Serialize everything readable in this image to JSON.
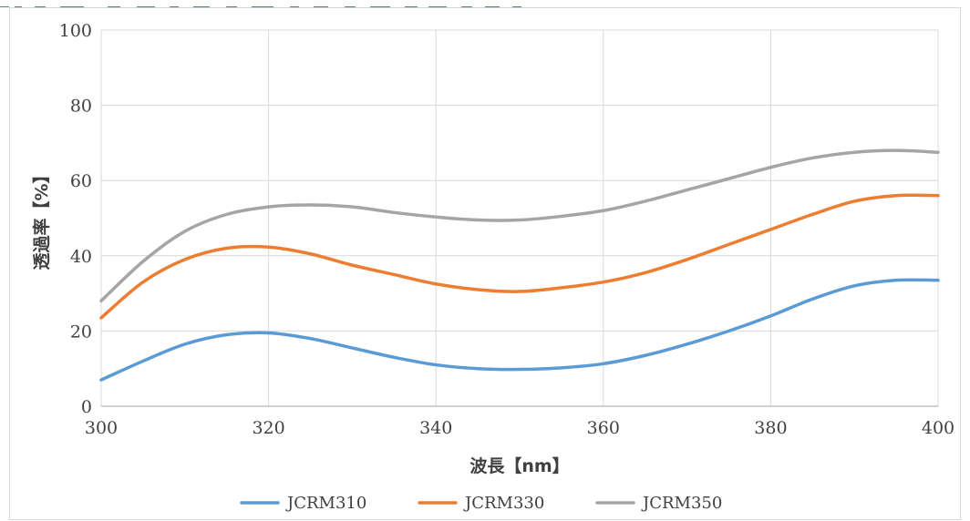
{
  "chart_data": {
    "type": "line",
    "title": "",
    "xlabel": "波長【nm】",
    "ylabel": "透過率【%】",
    "xlim": [
      300,
      400
    ],
    "ylim": [
      0,
      100
    ],
    "x_ticks": [
      300,
      320,
      340,
      360,
      380,
      400
    ],
    "y_ticks": [
      0,
      20,
      40,
      60,
      80,
      100
    ],
    "x_tick_labels": [
      "300",
      "320",
      "340",
      "360",
      "380",
      "400"
    ],
    "y_tick_labels": [
      "0",
      "20",
      "40",
      "60",
      "80",
      "100"
    ],
    "grid": true,
    "legend_position": "bottom",
    "x": [
      300,
      305,
      310,
      315,
      320,
      325,
      330,
      335,
      340,
      345,
      350,
      355,
      360,
      365,
      370,
      375,
      380,
      385,
      390,
      395,
      400
    ],
    "series": [
      {
        "name": "JCRM310",
        "color": "#5b9bd5",
        "values": [
          7.0,
          12.0,
          16.5,
          19.0,
          19.5,
          18.0,
          15.5,
          13.0,
          11.0,
          10.0,
          9.8,
          10.2,
          11.3,
          13.5,
          16.5,
          20.0,
          24.0,
          28.5,
          32.0,
          33.5,
          33.5
        ]
      },
      {
        "name": "JCRM330",
        "color": "#ed7d31",
        "values": [
          23.5,
          33.0,
          39.0,
          42.0,
          42.3,
          40.5,
          37.5,
          35.0,
          32.5,
          31.0,
          30.5,
          31.5,
          33.0,
          35.5,
          39.0,
          43.0,
          47.0,
          51.0,
          54.5,
          56.0,
          56.0
        ]
      },
      {
        "name": "JCRM350",
        "color": "#a5a5a5",
        "values": [
          28.0,
          38.5,
          46.5,
          51.0,
          53.0,
          53.5,
          53.0,
          51.5,
          50.3,
          49.5,
          49.5,
          50.5,
          52.0,
          54.5,
          57.5,
          60.5,
          63.5,
          66.0,
          67.5,
          68.0,
          67.5
        ]
      }
    ]
  }
}
